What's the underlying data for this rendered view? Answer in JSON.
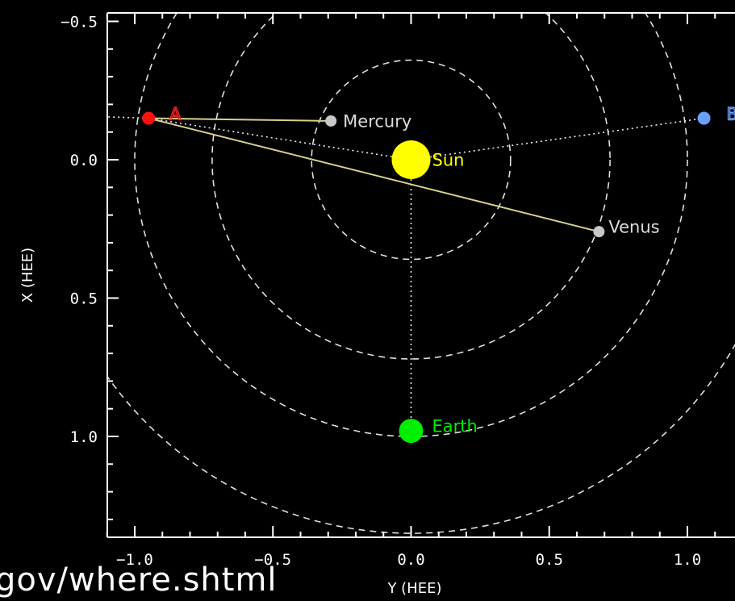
{
  "chart_data": {
    "type": "scatter",
    "title": "",
    "xlabel": "Y (HEE)",
    "ylabel": "X (HEE)",
    "xlim": [
      -1.1,
      1.2
    ],
    "ylim_top": -0.52,
    "ylim_bottom": 1.37,
    "x_ticks": [
      -1.0,
      -0.5,
      0.0,
      0.5,
      1.0
    ],
    "x_tick_labels": [
      "−1.0",
      "−0.5",
      "0.0",
      "0.5",
      "1.0"
    ],
    "y_ticks": [
      -0.5,
      0.0,
      0.5,
      1.0
    ],
    "y_tick_labels": [
      "−0.5",
      "0.0",
      "0.5",
      "1.0"
    ],
    "orbit_radii": [
      0.36,
      0.72,
      1.0,
      1.35
    ],
    "bodies": [
      {
        "name": "Sun",
        "label": "Sun",
        "y_hee": 0.0,
        "x_hee": 0.0,
        "color": "#ffff00",
        "label_color": "#ffff00"
      },
      {
        "name": "Mercury",
        "label": "Mercury",
        "y_hee": -0.29,
        "x_hee": -0.14,
        "color": "#c8c8c8",
        "label_color": "#dcdcdc"
      },
      {
        "name": "Venus",
        "label": "Venus",
        "y_hee": 0.68,
        "x_hee": 0.26,
        "color": "#c8c8c8",
        "label_color": "#dcdcdc"
      },
      {
        "name": "Earth",
        "label": "Earth",
        "y_hee": 0.0,
        "x_hee": 0.98,
        "color": "#00ee00",
        "label_color": "#00ee00"
      },
      {
        "name": "STEREO-A",
        "label": "A",
        "y_hee": -0.95,
        "x_hee": -0.15,
        "color": "#ff1010",
        "label_color": "#ff2020"
      },
      {
        "name": "STEREO-B",
        "label": "B",
        "y_hee": 1.06,
        "x_hee": -0.15,
        "color": "#6aa0ff",
        "label_color": "#6aa0ff"
      }
    ],
    "lines": [
      {
        "from": "STEREO-A",
        "to": "Mercury",
        "color": "#d8d090"
      },
      {
        "from": "STEREO-A",
        "to": "Venus",
        "color": "#d8d090"
      }
    ],
    "grid": false,
    "legend": "none"
  },
  "page": {
    "url_fragment": "gov/where.shtml"
  }
}
